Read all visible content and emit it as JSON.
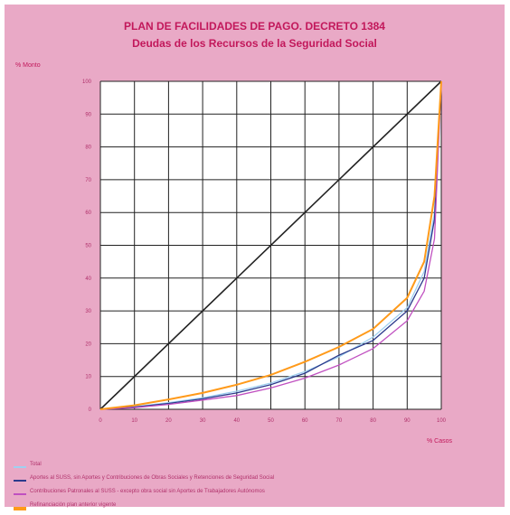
{
  "chart_data": {
    "type": "line",
    "title": "PLAN DE FACILIDADES DE PAGO. DECRETO 1384",
    "subtitle": "Deudas de los Recursos de la Seguridad Social",
    "ylabel": "% Monto",
    "xlabel": "% Casos",
    "xlim": [
      0,
      100
    ],
    "ylim": [
      0,
      100
    ],
    "xticks": [
      0,
      10,
      20,
      30,
      40,
      50,
      60,
      70,
      80,
      90,
      100
    ],
    "yticks": [
      0,
      10,
      20,
      30,
      40,
      50,
      60,
      70,
      80,
      90,
      100
    ],
    "grid": true,
    "legend_position": "bottom",
    "equality_line": [
      [
        0,
        0
      ],
      [
        100,
        100
      ]
    ],
    "series": [
      {
        "name": "Total",
        "color": "#9fd0f0",
        "x": [
          0,
          10,
          20,
          30,
          40,
          50,
          60,
          70,
          80,
          90,
          95,
          98,
          100
        ],
        "y": [
          0,
          0.8,
          2,
          3.5,
          5.5,
          8,
          11.5,
          16,
          22,
          31,
          42,
          60,
          100
        ]
      },
      {
        "name": "Aportes al SUSS, sin Aportes y Contribuciones de Obras Sociales y Retenciones de Seguridad Social",
        "color": "#2b3a8c",
        "x": [
          0,
          10,
          20,
          30,
          40,
          50,
          60,
          70,
          80,
          90,
          95,
          98,
          100
        ],
        "y": [
          0,
          0.7,
          1.8,
          3.2,
          5,
          7.5,
          11,
          16.5,
          21,
          30,
          40,
          58,
          100
        ]
      },
      {
        "name": "Contribuciones Patronales al SUSS - excepto obra social sin Aportes de Trabajadores Autónomos",
        "color": "#c050c0",
        "x": [
          0,
          10,
          20,
          30,
          40,
          50,
          60,
          70,
          80,
          90,
          95,
          98,
          100
        ],
        "y": [
          0,
          0.5,
          1.5,
          2.8,
          4.2,
          6.5,
          9.5,
          13.5,
          18.5,
          27,
          36,
          52,
          100
        ]
      },
      {
        "name": "Refinanciación plan anterior vigente",
        "color": "#ff9a1a",
        "x": [
          0,
          10,
          20,
          30,
          40,
          50,
          60,
          70,
          80,
          90,
          95,
          98,
          100
        ],
        "y": [
          0,
          1.2,
          3,
          5,
          7.5,
          10.5,
          14.5,
          19,
          24.5,
          34,
          45,
          65,
          100
        ]
      }
    ]
  }
}
